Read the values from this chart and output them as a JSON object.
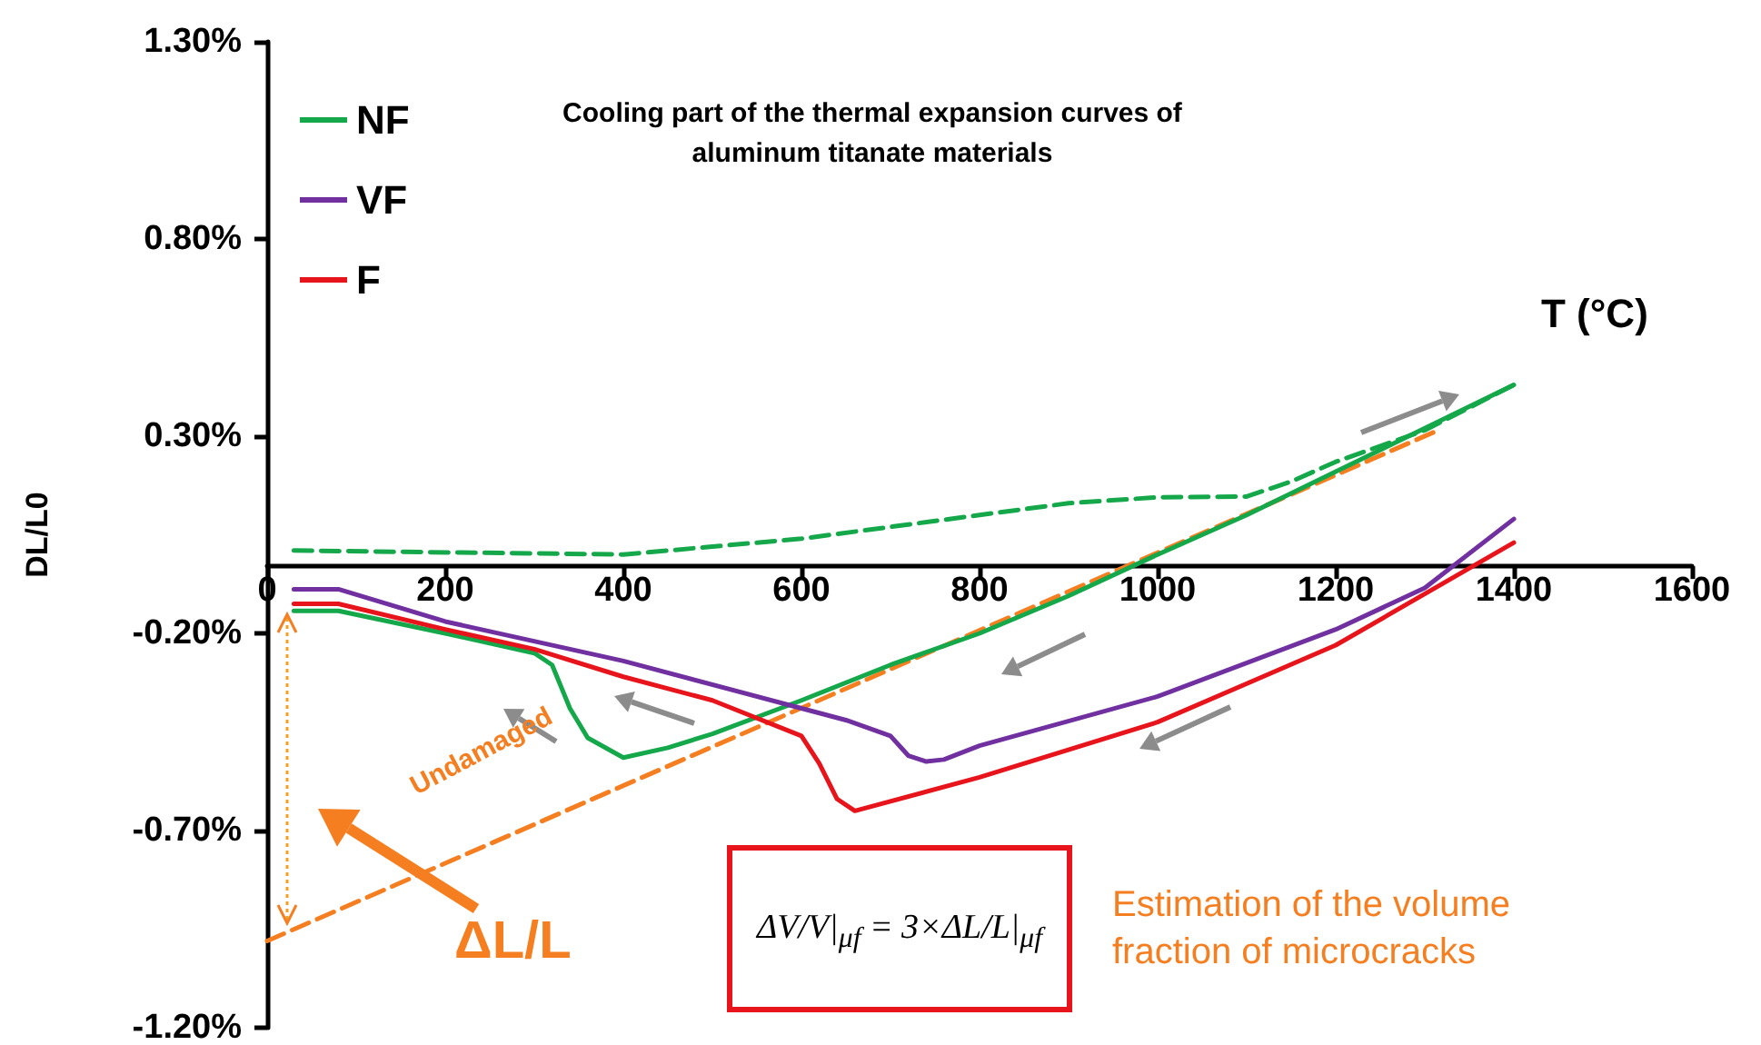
{
  "chart_data": {
    "type": "line",
    "title": "Cooling part of the thermal expansion curves of aluminum titanate materials",
    "xlabel": "T (°C)",
    "ylabel": "DL/L0",
    "xlim": [
      0,
      1600
    ],
    "xticks": [
      0,
      200,
      400,
      600,
      800,
      1000,
      1200,
      1400,
      1600
    ],
    "ylim": [
      -1.2,
      1.3
    ],
    "yticks": [
      {
        "value": -1.2,
        "label": "-1.20%"
      },
      {
        "value": -0.7,
        "label": "-0.70%"
      },
      {
        "value": -0.2,
        "label": "-0.20%"
      },
      {
        "value": 0.3,
        "label": "0.30%"
      },
      {
        "value": 0.8,
        "label": "0.80%"
      },
      {
        "value": 1.3,
        "label": "1.30%"
      }
    ],
    "grid": false,
    "legend": "top left",
    "marker": "none",
    "series": [
      {
        "name": "NF",
        "color": "#14a84b",
        "x": [
          30,
          80,
          200,
          300,
          320,
          340,
          360,
          400,
          450,
          500,
          600,
          700,
          800,
          900,
          1000,
          1100,
          1200,
          1300,
          1400
        ],
        "values": [
          -0.143,
          -0.143,
          -0.2,
          -0.25,
          -0.28,
          -0.39,
          -0.465,
          -0.515,
          -0.49,
          -0.455,
          -0.37,
          -0.28,
          -0.2,
          -0.105,
          0.0,
          0.1,
          0.21,
          0.32,
          0.43
        ]
      },
      {
        "name": "VF",
        "color": "#7030a0",
        "x": [
          30,
          80,
          200,
          400,
          600,
          650,
          700,
          720,
          740,
          760,
          800,
          1000,
          1200,
          1300,
          1400
        ],
        "values": [
          -0.088,
          -0.088,
          -0.17,
          -0.27,
          -0.39,
          -0.42,
          -0.46,
          -0.51,
          -0.525,
          -0.52,
          -0.485,
          -0.36,
          -0.19,
          -0.085,
          0.09
        ]
      },
      {
        "name": "F",
        "color": "#e8141c",
        "x": [
          30,
          80,
          200,
          300,
          400,
          500,
          600,
          620,
          640,
          660,
          800,
          1000,
          1200,
          1400
        ],
        "values": [
          -0.125,
          -0.125,
          -0.19,
          -0.24,
          -0.31,
          -0.37,
          -0.46,
          -0.53,
          -0.62,
          -0.65,
          -0.565,
          -0.425,
          -0.23,
          0.03
        ]
      },
      {
        "color": "#14a84b",
        "line_style": "dashed",
        "x": [
          30,
          400,
          500,
          600,
          700,
          800,
          900,
          1000,
          1100,
          1150,
          1200,
          1300,
          1400
        ],
        "values": [
          0.01,
          0.0,
          0.02,
          0.04,
          0.07,
          0.1,
          0.13,
          0.145,
          0.147,
          0.185,
          0.235,
          0.315,
          0.43
        ]
      },
      {
        "color": "#f57f20",
        "line_style": "dashed",
        "x": [
          0,
          1310
        ],
        "values": [
          -0.98,
          0.31
        ]
      }
    ],
    "annotations": [
      "Undamaged",
      "ΔL/L",
      "ΔV/V|$_{μf}$ = 3×ΔL/L|$_{μf}$",
      "Estimation of the volume fraction of microcracks"
    ]
  }
}
